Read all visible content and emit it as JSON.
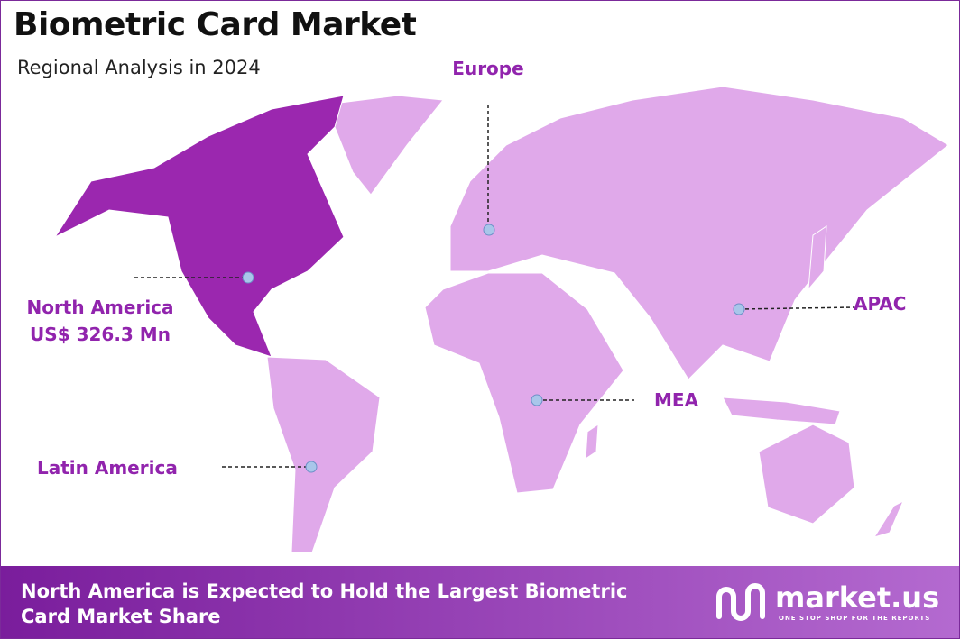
{
  "header": {
    "title": "Biometric Card Market",
    "subtitle": "Regional Analysis in 2024"
  },
  "regions": [
    {
      "name": "North America",
      "value": "US$ 326.3 Mn"
    },
    {
      "name": "Europe"
    },
    {
      "name": "APAC"
    },
    {
      "name": "MEA"
    },
    {
      "name": "Latin America"
    }
  ],
  "footer": {
    "text": "North America is Expected to Hold the Largest Biometric Card Market Share",
    "brand": "market.us",
    "tagline": "ONE STOP SHOP FOR THE REPORTS"
  }
}
